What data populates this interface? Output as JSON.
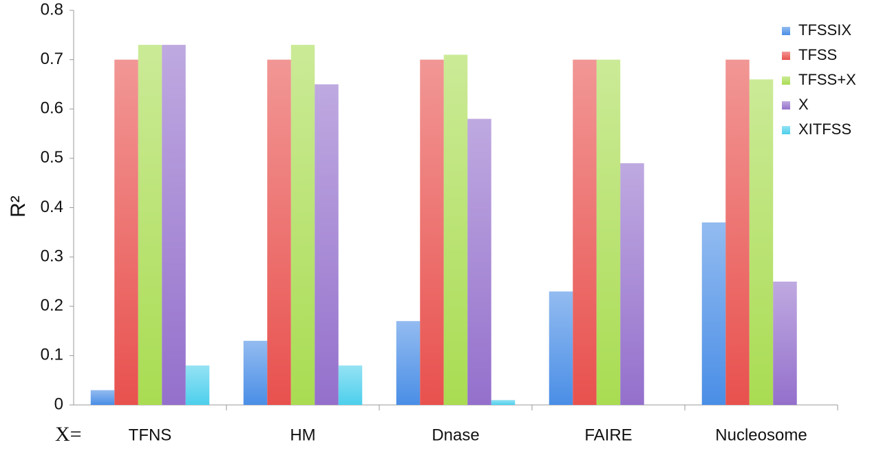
{
  "chart_data": {
    "type": "bar",
    "y_label": "R²",
    "x_label": "X=",
    "categories": [
      "TFNS",
      "HM",
      "Dnase",
      "FAIRE",
      "Nucleosome"
    ],
    "series": [
      {
        "name": "TFSSIX",
        "color": "#4a8ee6",
        "values": [
          0.03,
          0.13,
          0.17,
          0.23,
          0.37
        ]
      },
      {
        "name": "TFSS",
        "color": "#e8514e",
        "values": [
          0.7,
          0.7,
          0.7,
          0.7,
          0.7
        ]
      },
      {
        "name": "TFSS+X",
        "color": "#a9dc52",
        "values": [
          0.73,
          0.73,
          0.71,
          0.7,
          0.66
        ]
      },
      {
        "name": "X",
        "color": "#9470cc",
        "values": [
          0.73,
          0.65,
          0.58,
          0.49,
          0.25
        ]
      },
      {
        "name": "XITFSS",
        "color": "#4dcfec",
        "values": [
          0.08,
          0.08,
          0.01,
          0,
          0
        ]
      }
    ],
    "ylim": [
      0,
      0.8
    ],
    "yticks": [
      0,
      0.1,
      0.2,
      0.3,
      0.4,
      0.5,
      0.6,
      0.7,
      0.8
    ],
    "legend": "top-right"
  }
}
